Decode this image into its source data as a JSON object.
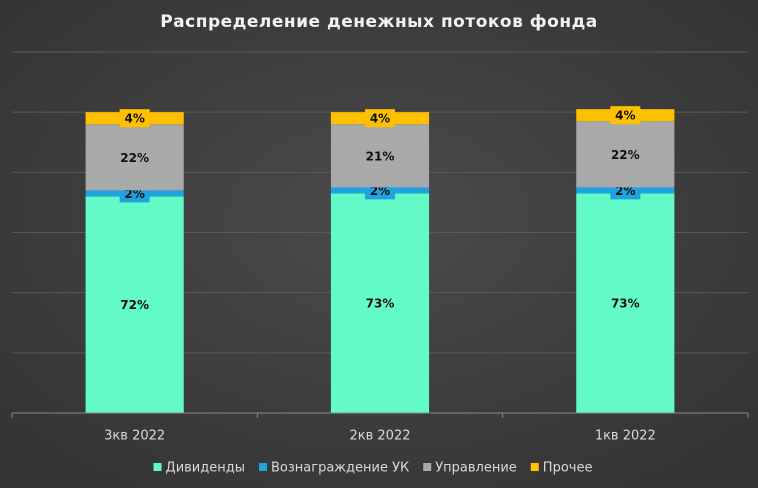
{
  "chart_data": {
    "type": "stacked-bar",
    "title": "Распределение денежных потоков фонда",
    "categories": [
      "3кв 2022",
      "2кв 2022",
      "1кв 2022"
    ],
    "series": [
      {
        "name": "Дивиденды",
        "color": "#62fbc8",
        "values": [
          72,
          73,
          73
        ],
        "value_labels": [
          "72%",
          "73%",
          "73%"
        ]
      },
      {
        "name": "Вознаграждение УК",
        "color": "#1fa3df",
        "values": [
          2,
          2,
          2
        ],
        "value_labels": [
          "2%",
          "2%",
          "2%"
        ]
      },
      {
        "name": "Управление",
        "color": "#a9a9a9",
        "values": [
          22,
          21,
          22
        ],
        "value_labels": [
          "22%",
          "21%",
          "22%"
        ]
      },
      {
        "name": "Прочее",
        "color": "#ffc000",
        "values": [
          4,
          4,
          4
        ],
        "value_labels": [
          "4%",
          "4%",
          "4%"
        ]
      }
    ],
    "ylim": [
      0,
      120
    ],
    "yticks": [
      0,
      20,
      40,
      60,
      80,
      100,
      120
    ],
    "grid": true,
    "legend": "bottom"
  }
}
